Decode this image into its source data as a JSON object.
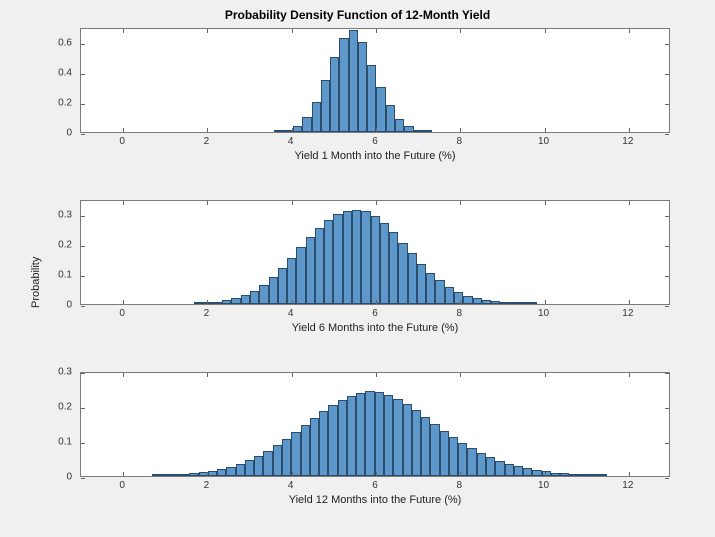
{
  "title": "Probability Density Function of 12-Month Yield",
  "background_color": "#f0f0f0",
  "plot_bg": "#ffffff",
  "axis_color": "#7a7a7a",
  "bar_fill": "#5e97c9",
  "bar_edge": "#2a4d6e",
  "text_color": "#222222",
  "title_fontsize": 12,
  "label_fontsize": 11,
  "tick_fontsize": 10,
  "shared_ylabel": "Probability",
  "xlim": [
    -1,
    13
  ],
  "xticks": [
    0,
    2,
    4,
    6,
    8,
    10,
    12
  ],
  "bar_bin_width": 0.22,
  "subplots": [
    {
      "xlabel": "Yield 1 Month into the Future (%)",
      "ylim": [
        0,
        0.7
      ],
      "yticks": [
        0,
        0.2,
        0.4,
        0.6
      ],
      "bars": [
        {
          "x": 3.7,
          "y": 0.005
        },
        {
          "x": 3.92,
          "y": 0.015
        },
        {
          "x": 4.14,
          "y": 0.04
        },
        {
          "x": 4.36,
          "y": 0.1
        },
        {
          "x": 4.58,
          "y": 0.2
        },
        {
          "x": 4.8,
          "y": 0.35
        },
        {
          "x": 5.02,
          "y": 0.5
        },
        {
          "x": 5.24,
          "y": 0.63
        },
        {
          "x": 5.46,
          "y": 0.68
        },
        {
          "x": 5.68,
          "y": 0.6
        },
        {
          "x": 5.9,
          "y": 0.45
        },
        {
          "x": 6.12,
          "y": 0.3
        },
        {
          "x": 6.34,
          "y": 0.18
        },
        {
          "x": 6.56,
          "y": 0.09
        },
        {
          "x": 6.78,
          "y": 0.04
        },
        {
          "x": 7.0,
          "y": 0.015
        },
        {
          "x": 7.22,
          "y": 0.005
        }
      ]
    },
    {
      "xlabel": "Yield 6 Months into the Future (%)",
      "ylim": [
        0,
        0.35
      ],
      "yticks": [
        0,
        0.1,
        0.2,
        0.3
      ],
      "bars": [
        {
          "x": 1.8,
          "y": 0.003
        },
        {
          "x": 2.02,
          "y": 0.005
        },
        {
          "x": 2.24,
          "y": 0.008
        },
        {
          "x": 2.46,
          "y": 0.012
        },
        {
          "x": 2.68,
          "y": 0.02
        },
        {
          "x": 2.9,
          "y": 0.03
        },
        {
          "x": 3.12,
          "y": 0.045
        },
        {
          "x": 3.34,
          "y": 0.065
        },
        {
          "x": 3.56,
          "y": 0.09
        },
        {
          "x": 3.78,
          "y": 0.12
        },
        {
          "x": 4.0,
          "y": 0.155
        },
        {
          "x": 4.22,
          "y": 0.19
        },
        {
          "x": 4.44,
          "y": 0.225
        },
        {
          "x": 4.66,
          "y": 0.255
        },
        {
          "x": 4.88,
          "y": 0.28
        },
        {
          "x": 5.1,
          "y": 0.3
        },
        {
          "x": 5.32,
          "y": 0.31
        },
        {
          "x": 5.54,
          "y": 0.315
        },
        {
          "x": 5.76,
          "y": 0.31
        },
        {
          "x": 5.98,
          "y": 0.295
        },
        {
          "x": 6.2,
          "y": 0.27
        },
        {
          "x": 6.42,
          "y": 0.24
        },
        {
          "x": 6.64,
          "y": 0.205
        },
        {
          "x": 6.86,
          "y": 0.17
        },
        {
          "x": 7.08,
          "y": 0.135
        },
        {
          "x": 7.3,
          "y": 0.105
        },
        {
          "x": 7.52,
          "y": 0.08
        },
        {
          "x": 7.74,
          "y": 0.058
        },
        {
          "x": 7.96,
          "y": 0.04
        },
        {
          "x": 8.18,
          "y": 0.028
        },
        {
          "x": 8.4,
          "y": 0.02
        },
        {
          "x": 8.62,
          "y": 0.013
        },
        {
          "x": 8.84,
          "y": 0.009
        },
        {
          "x": 9.06,
          "y": 0.006
        },
        {
          "x": 9.28,
          "y": 0.004
        },
        {
          "x": 9.5,
          "y": 0.003
        },
        {
          "x": 9.72,
          "y": 0.002
        }
      ]
    },
    {
      "xlabel": "Yield 12 Months into the Future (%)",
      "ylim": [
        0,
        0.3
      ],
      "yticks": [
        0,
        0.1,
        0.2,
        0.3
      ],
      "bars": [
        {
          "x": 0.8,
          "y": 0.002
        },
        {
          "x": 1.02,
          "y": 0.003
        },
        {
          "x": 1.24,
          "y": 0.004
        },
        {
          "x": 1.46,
          "y": 0.006
        },
        {
          "x": 1.68,
          "y": 0.008
        },
        {
          "x": 1.9,
          "y": 0.011
        },
        {
          "x": 2.12,
          "y": 0.015
        },
        {
          "x": 2.34,
          "y": 0.02
        },
        {
          "x": 2.56,
          "y": 0.027
        },
        {
          "x": 2.78,
          "y": 0.035
        },
        {
          "x": 3.0,
          "y": 0.045
        },
        {
          "x": 3.22,
          "y": 0.058
        },
        {
          "x": 3.44,
          "y": 0.072
        },
        {
          "x": 3.66,
          "y": 0.088
        },
        {
          "x": 3.88,
          "y": 0.106
        },
        {
          "x": 4.1,
          "y": 0.125
        },
        {
          "x": 4.32,
          "y": 0.145
        },
        {
          "x": 4.54,
          "y": 0.165
        },
        {
          "x": 4.76,
          "y": 0.185
        },
        {
          "x": 4.98,
          "y": 0.203
        },
        {
          "x": 5.2,
          "y": 0.218
        },
        {
          "x": 5.42,
          "y": 0.23
        },
        {
          "x": 5.64,
          "y": 0.238
        },
        {
          "x": 5.86,
          "y": 0.242
        },
        {
          "x": 6.08,
          "y": 0.24
        },
        {
          "x": 6.3,
          "y": 0.232
        },
        {
          "x": 6.52,
          "y": 0.22
        },
        {
          "x": 6.74,
          "y": 0.205
        },
        {
          "x": 6.96,
          "y": 0.188
        },
        {
          "x": 7.18,
          "y": 0.17
        },
        {
          "x": 7.4,
          "y": 0.15
        },
        {
          "x": 7.62,
          "y": 0.13
        },
        {
          "x": 7.84,
          "y": 0.112
        },
        {
          "x": 8.06,
          "y": 0.095
        },
        {
          "x": 8.28,
          "y": 0.08
        },
        {
          "x": 8.5,
          "y": 0.066
        },
        {
          "x": 8.72,
          "y": 0.054
        },
        {
          "x": 8.94,
          "y": 0.044
        },
        {
          "x": 9.16,
          "y": 0.035
        },
        {
          "x": 9.38,
          "y": 0.028
        },
        {
          "x": 9.6,
          "y": 0.022
        },
        {
          "x": 9.82,
          "y": 0.017
        },
        {
          "x": 10.04,
          "y": 0.013
        },
        {
          "x": 10.26,
          "y": 0.01
        },
        {
          "x": 10.48,
          "y": 0.008
        },
        {
          "x": 10.7,
          "y": 0.006
        },
        {
          "x": 10.92,
          "y": 0.004
        },
        {
          "x": 11.14,
          "y": 0.003
        },
        {
          "x": 11.36,
          "y": 0.002
        }
      ]
    }
  ]
}
